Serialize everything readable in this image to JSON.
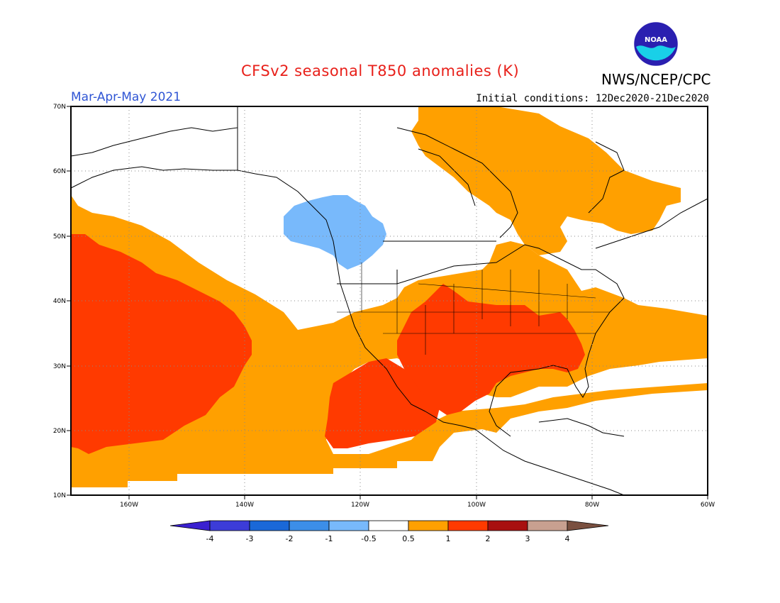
{
  "header": {
    "title": "CFSv2 seasonal T850 anomalies (K)",
    "agency": "NWS/NCEP/CPC",
    "logo_text": "NOAA",
    "season": "Mar-Apr-May 2021",
    "initial_conditions": "Initial conditions: 12Dec2020-21Dec2020"
  },
  "map": {
    "lon_range": [
      -170,
      -60
    ],
    "lat_range": [
      10,
      70
    ],
    "lat_labels": [
      "70N",
      "60N",
      "50N",
      "40N",
      "30N",
      "20N",
      "10N"
    ],
    "lon_labels": [
      "160W",
      "140W",
      "120W",
      "100W",
      "80W",
      "60W"
    ],
    "regions": [
      {
        "name": "anom-0.5-1-north",
        "color": "#ffa000"
      },
      {
        "name": "anom-0.5-1-pacific",
        "color": "#ffa000"
      },
      {
        "name": "anom-1-2-pacific",
        "color": "#ff3a00"
      },
      {
        "name": "anom-1-2-mexico",
        "color": "#ff3a00"
      },
      {
        "name": "anom-1-2-southern-us",
        "color": "#ff3a00"
      },
      {
        "name": "anom-neg-0.5-bc",
        "color": "#78b9fb"
      }
    ]
  },
  "colorbar": {
    "labels": [
      "-4",
      "-3",
      "-2",
      "-1",
      "-0.5",
      "0.5",
      "1",
      "2",
      "3",
      "4"
    ],
    "colors": [
      "#3a20d0",
      "#3c3cd8",
      "#1a68d8",
      "#3c8ee8",
      "#78b9fb",
      "#ffffff",
      "#ffa000",
      "#ff3a00",
      "#a81010",
      "#c8a090",
      "#7a5040"
    ]
  }
}
